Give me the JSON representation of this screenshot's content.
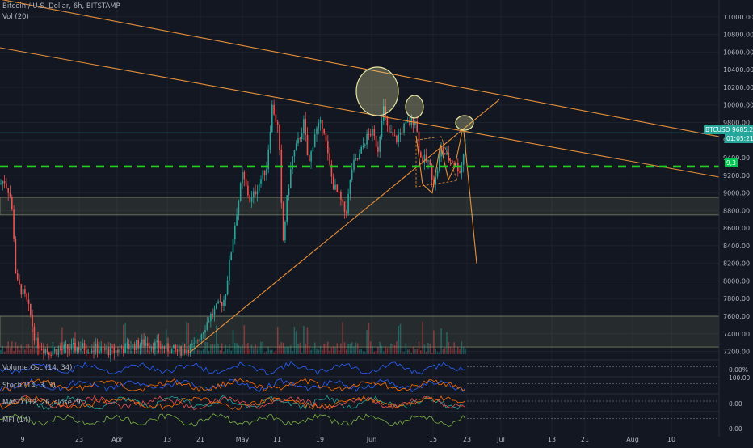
{
  "header": {
    "title": "Bitcoin / U.S. Dollar, 6h, BITSTAMP",
    "volume_label": "Vol (20)"
  },
  "indicators": {
    "volume_osc": "Volume Osc (14, 34)",
    "stoch": "Stoch (14, 3, 3)",
    "macd": "MACD (12, 26, close, 9)",
    "mfi": "MFI (14)"
  },
  "price_tag": {
    "symbol": "BTCUSD",
    "price": "9685.26",
    "countdown": "01:05:21",
    "color": "#26a69a"
  },
  "support_tag": {
    "label": "9,3",
    "color": "#00c853"
  },
  "indicator_values": {
    "volume_osc": "0.00%",
    "stoch": "100.00",
    "macd": "0.00",
    "mfi": "0.00"
  },
  "colors": {
    "up": "#26a69a",
    "down": "#ef5350",
    "trendline": "#e8913a",
    "support": "#22cc22",
    "zone": "#b5c08a",
    "circle": "#e6e6a0"
  },
  "chart_data": {
    "type": "candlestick",
    "title": "Bitcoin / U.S. Dollar, 6h, BITSTAMP",
    "y_ticks": [
      11000,
      10800,
      10600,
      10400,
      10200,
      10000,
      9800,
      9600,
      9400,
      9200,
      9000,
      8800,
      8600,
      8400,
      8200,
      8000,
      7800,
      7600,
      7400,
      7200
    ],
    "ylim": [
      7150,
      11100
    ],
    "y_tick_labels": [
      "11000.00",
      "10800.00",
      "10600.00",
      "10400.00",
      "10200.00",
      "10000.00",
      "9800.00",
      "9600.00",
      "9400.00",
      "9200.00",
      "9000.00",
      "8800.00",
      "8600.00",
      "8400.00",
      "8200.00",
      "8000.00",
      "7800.00",
      "7600.00",
      "7400.00",
      "7200.00"
    ],
    "x_ticks": [
      "9",
      "23",
      "Apr",
      "13",
      "21",
      "May",
      "11",
      "19",
      "Jun",
      "15",
      "23",
      "Jul",
      "13",
      "21",
      "Aug",
      "10"
    ],
    "price_path": [
      [
        0,
        9100
      ],
      [
        5,
        9150
      ],
      [
        12,
        9000
      ],
      [
        16,
        8700
      ],
      [
        20,
        8000
      ],
      [
        26,
        7900
      ],
      [
        32,
        7800
      ],
      [
        38,
        7600
      ],
      [
        44,
        7300
      ],
      [
        60,
        7200
      ],
      [
        100,
        7250
      ],
      [
        140,
        7200
      ],
      [
        180,
        7300
      ],
      [
        220,
        7200
      ],
      [
        240,
        7250
      ],
      [
        260,
        7600
      ],
      [
        278,
        7800
      ],
      [
        290,
        8600
      ],
      [
        300,
        9200
      ],
      [
        310,
        8900
      ],
      [
        320,
        9100
      ],
      [
        330,
        9300
      ],
      [
        337,
        10000
      ],
      [
        345,
        9700
      ],
      [
        350,
        8400
      ],
      [
        356,
        9000
      ],
      [
        362,
        9400
      ],
      [
        370,
        9600
      ],
      [
        376,
        9800
      ],
      [
        382,
        9300
      ],
      [
        390,
        9700
      ],
      [
        400,
        9800
      ],
      [
        406,
        9400
      ],
      [
        412,
        9100
      ],
      [
        420,
        8950
      ],
      [
        428,
        8750
      ],
      [
        436,
        9300
      ],
      [
        444,
        9400
      ],
      [
        452,
        9600
      ],
      [
        460,
        9700
      ],
      [
        468,
        9500
      ],
      [
        474,
        10000
      ],
      [
        480,
        9700
      ],
      [
        490,
        9600
      ],
      [
        500,
        9750
      ],
      [
        508,
        9800
      ],
      [
        514,
        9850
      ],
      [
        520,
        9400
      ],
      [
        530,
        9350
      ],
      [
        538,
        9100
      ],
      [
        546,
        9500
      ],
      [
        554,
        9400
      ],
      [
        562,
        9350
      ],
      [
        570,
        9250
      ],
      [
        578,
        9685
      ]
    ],
    "support_level": 9300,
    "zones": [
      [
        8750,
        8950
      ],
      [
        7250,
        7600
      ]
    ],
    "projection": [
      [
        574,
        9700
      ],
      [
        590,
        8200
      ]
    ]
  }
}
